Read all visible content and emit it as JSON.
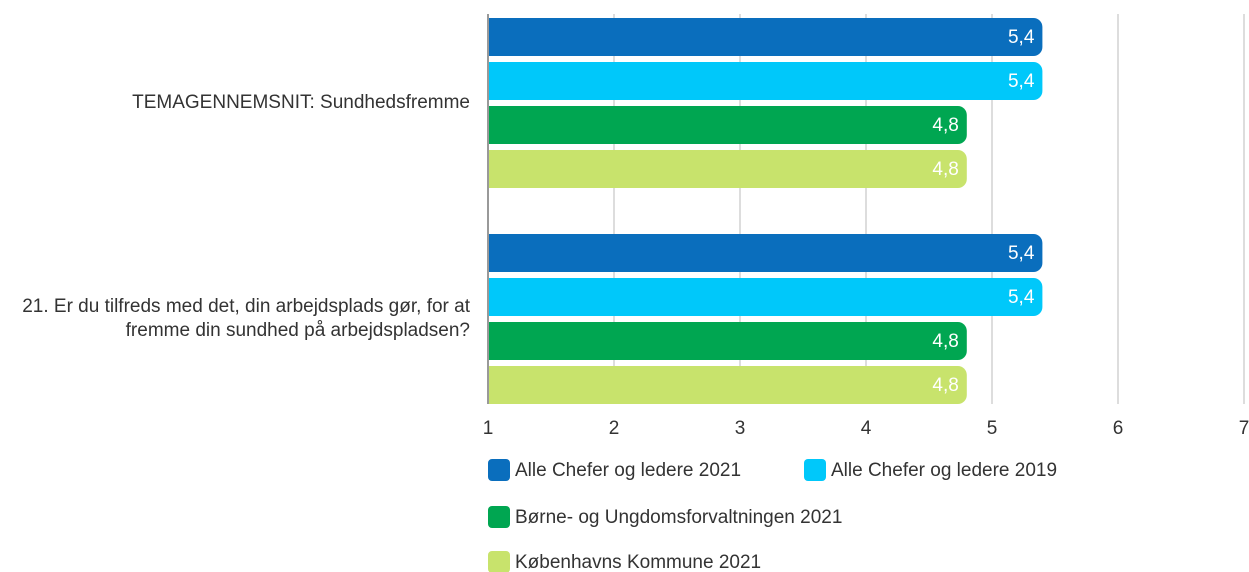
{
  "chart_data": {
    "type": "barh",
    "categories": [
      "TEMAGENNEMSNIT: Sundhedsfremme",
      "21. Er du tilfreds med det, din arbejdsplads gør, for at fremme din sundhed på arbejdspladsen?"
    ],
    "series": [
      {
        "name": "Alle Chefer og ledere 2021",
        "color": "#0a6ebd",
        "values": [
          5.4,
          5.4
        ],
        "value_labels": [
          "5,4",
          "5,4"
        ]
      },
      {
        "name": "Alle Chefer og ledere 2019",
        "color": "#00c8fa",
        "values": [
          5.4,
          5.4
        ],
        "value_labels": [
          "5,4",
          "5,4"
        ]
      },
      {
        "name": "Børne- og Ungdomsforvaltningen 2021",
        "color": "#00a651",
        "values": [
          4.8,
          4.8
        ],
        "value_labels": [
          "4,8",
          "4,8"
        ]
      },
      {
        "name": "Københavns Kommune 2021",
        "color": "#c8e36c",
        "values": [
          4.8,
          4.8
        ],
        "value_labels": [
          "4,8",
          "4,8"
        ]
      }
    ],
    "xlim": [
      1,
      7
    ],
    "xticks": [
      1,
      2,
      3,
      4,
      5,
      6,
      7
    ],
    "grid": true
  }
}
